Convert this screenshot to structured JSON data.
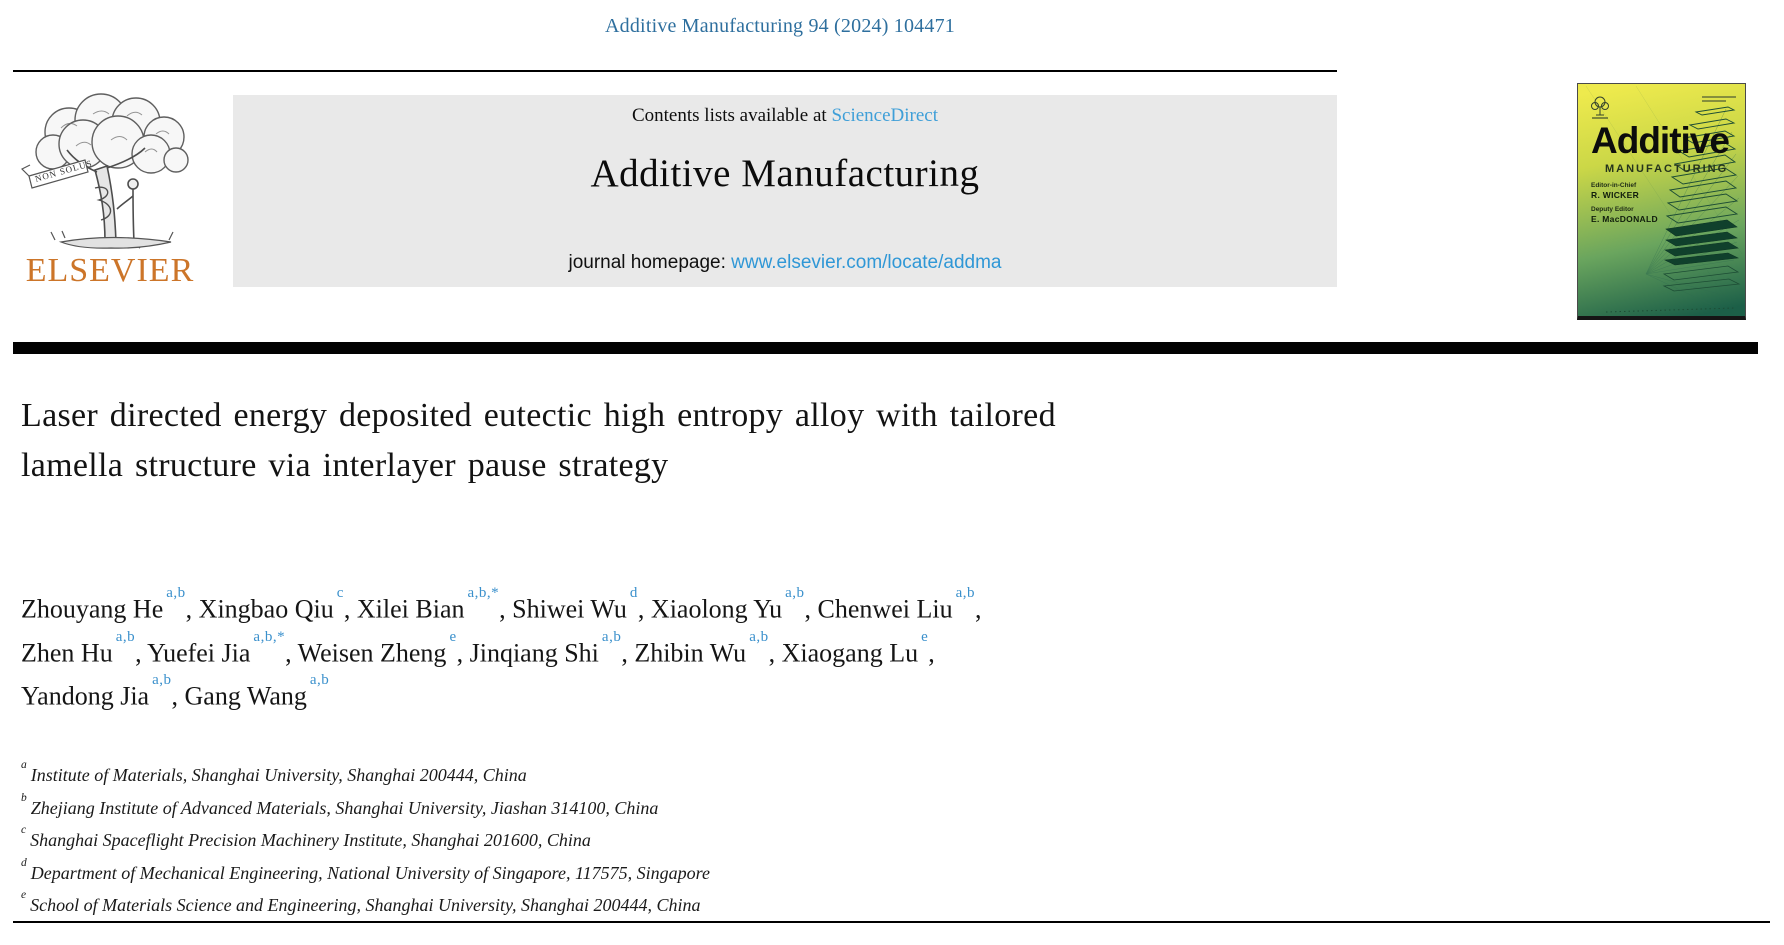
{
  "header": {
    "citation": "Additive Manufacturing 94 (2024) 104471",
    "contents_prefix": "Contents lists available at ",
    "sciencedirect_label": "ScienceDirect",
    "journal_title": "Additive Manufacturing",
    "homepage_prefix": "journal homepage: ",
    "homepage_url": "www.elsevier.com/locate/addma",
    "elsevier_wordmark": "ELSEVIER",
    "elsevier_motto": "NON SOLUS"
  },
  "cover": {
    "title": "Additive",
    "subtitle": "MANUFACTURING",
    "editor_label": "Editor-in-Chief",
    "editor_name": "R. WICKER",
    "deputy_label": "Deputy Editor",
    "deputy_name": "E. MacDONALD"
  },
  "article": {
    "title_line1": "Laser directed energy deposited eutectic high entropy alloy with tailored",
    "title_line2": "lamella structure via interlayer pause strategy",
    "author_lines": [
      [
        {
          "name": "Zhouyang He",
          "sup": "a,b",
          "sep": ", "
        },
        {
          "name": "Xingbao Qiu",
          "sup": "c",
          "sep": ", "
        },
        {
          "name": "Xilei Bian",
          "sup": "a,b,*",
          "sep": ", "
        },
        {
          "name": "Shiwei Wu",
          "sup": "d",
          "sep": ", "
        },
        {
          "name": "Xiaolong Yu",
          "sup": "a,b",
          "sep": ", "
        },
        {
          "name": "Chenwei Liu",
          "sup": "a,b",
          "sep": ","
        }
      ],
      [
        {
          "name": "Zhen Hu",
          "sup": "a,b",
          "sep": ", "
        },
        {
          "name": "Yuefei Jia",
          "sup": "a,b,*",
          "sep": ", "
        },
        {
          "name": "Weisen Zheng",
          "sup": "e",
          "sep": ", "
        },
        {
          "name": "Jinqiang Shi",
          "sup": "a,b",
          "sep": ", "
        },
        {
          "name": "Zhibin Wu",
          "sup": "a,b",
          "sep": ", "
        },
        {
          "name": "Xiaogang Lu",
          "sup": "e",
          "sep": ","
        }
      ],
      [
        {
          "name": "Yandong Jia",
          "sup": "a,b",
          "sep": ", "
        },
        {
          "name": "Gang Wang",
          "sup": "a,b",
          "sep": ""
        }
      ]
    ],
    "affiliations": [
      {
        "sup": "a",
        "text": "Institute of Materials, Shanghai University, Shanghai 200444, China"
      },
      {
        "sup": "b",
        "text": "Zhejiang Institute of Advanced Materials, Shanghai University, Jiashan 314100, China"
      },
      {
        "sup": "c",
        "text": "Shanghai Spaceflight Precision Machinery Institute, Shanghai 201600, China"
      },
      {
        "sup": "d",
        "text": "Department of Mechanical Engineering, National University of Singapore, 117575, Singapore"
      },
      {
        "sup": "e",
        "text": "School of Materials Science and Engineering, Shanghai University, Shanghai 200444, China"
      }
    ]
  },
  "colors": {
    "citation-blue": "#2e6f9e",
    "sciencedirect-blue": "#3f9fd8",
    "link-blue": "#2f97d6",
    "sup-blue": "#3a90cc",
    "elsevier-orange": "#cc7529",
    "banner-gray": "#e9e9e9",
    "cover-yellow": "#eeea4d",
    "cover-green": "#1c5f48"
  }
}
